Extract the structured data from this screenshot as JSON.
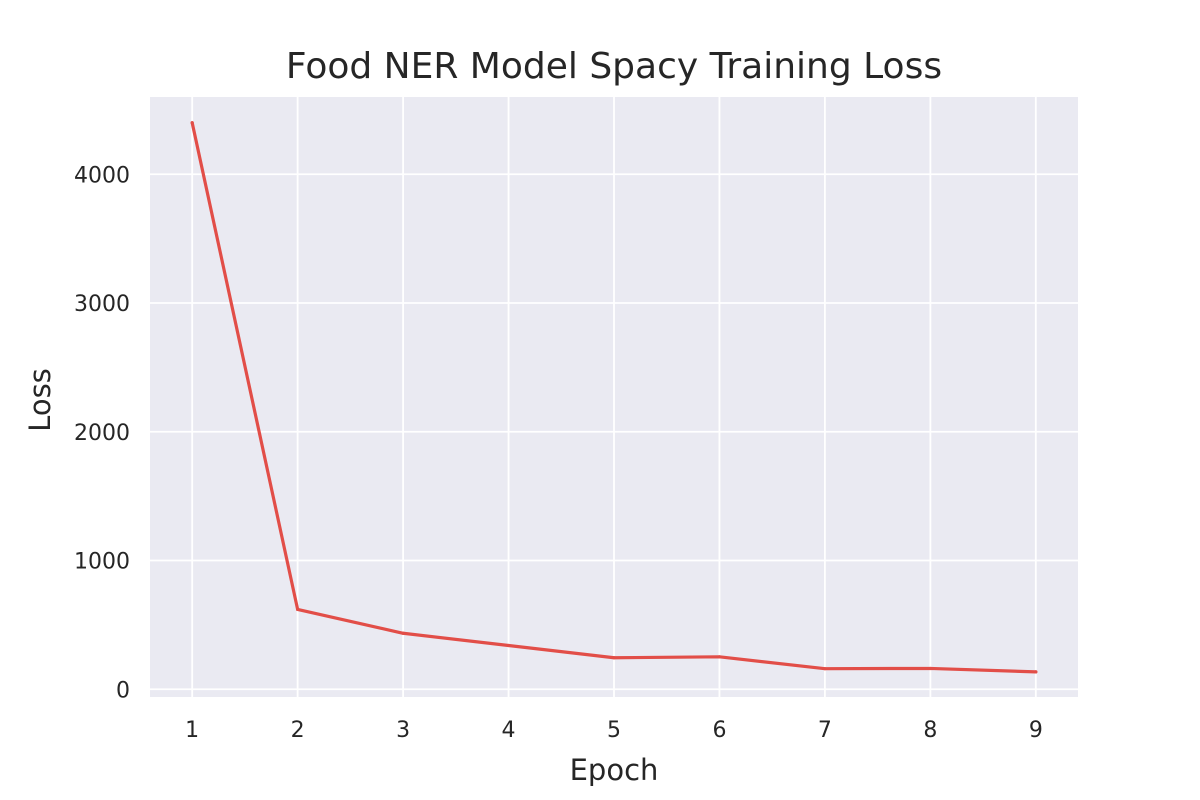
{
  "chart_data": {
    "type": "line",
    "title": "Food NER Model Spacy Training Loss",
    "xlabel": "Epoch",
    "ylabel": "Loss",
    "x": [
      1,
      2,
      3,
      4,
      5,
      6,
      7,
      8,
      9
    ],
    "series": [
      {
        "values": [
          4400,
          620,
          435,
          340,
          245,
          252,
          160,
          162,
          135
        ],
        "color": "#e24e48"
      }
    ],
    "xticks": [
      "1",
      "2",
      "3",
      "4",
      "5",
      "6",
      "7",
      "8",
      "9"
    ],
    "yticks": [
      0,
      1000,
      2000,
      3000,
      4000
    ],
    "ytick_labels": [
      "0",
      "1000",
      "2000",
      "3000",
      "4000"
    ],
    "xlim": [
      0.6,
      9.4
    ],
    "ylim": [
      -60,
      4600
    ],
    "grid": true,
    "legend": "none",
    "background": "#eaeaf2"
  }
}
